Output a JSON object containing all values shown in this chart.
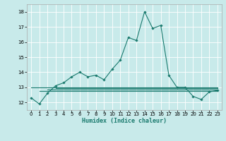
{
  "xlabel": "Humidex (Indice chaleur)",
  "background_color": "#c8eaea",
  "grid_color": "#d0f0f0",
  "line_color": "#1a7a6e",
  "xlim": [
    -0.5,
    23.5
  ],
  "ylim": [
    11.5,
    18.5
  ],
  "yticks": [
    12,
    13,
    14,
    15,
    16,
    17,
    18
  ],
  "xtick_labels": [
    "0",
    "1",
    "2",
    "3",
    "4",
    "5",
    "6",
    "7",
    "8",
    "9",
    "10",
    "11",
    "12",
    "13",
    "14",
    "15",
    "16",
    "17",
    "18",
    "19",
    "20",
    "21",
    "22",
    "23"
  ],
  "main_line": {
    "x": [
      0,
      1,
      2,
      3,
      4,
      5,
      6,
      7,
      8,
      9,
      10,
      11,
      12,
      13,
      14,
      15,
      16,
      17,
      18,
      19,
      20,
      21,
      22,
      23
    ],
    "y": [
      12.3,
      11.9,
      12.6,
      13.1,
      13.3,
      13.7,
      14.0,
      13.7,
      13.8,
      13.5,
      14.2,
      14.8,
      16.3,
      16.1,
      18.0,
      16.9,
      17.1,
      13.8,
      13.0,
      13.0,
      12.4,
      12.2,
      12.7,
      12.8
    ]
  },
  "flat_lines": [
    {
      "x": [
        0,
        23
      ],
      "y": [
        13.0,
        13.0
      ]
    },
    {
      "x": [
        1,
        23
      ],
      "y": [
        12.75,
        12.75
      ]
    },
    {
      "x": [
        2,
        23
      ],
      "y": [
        12.85,
        12.85
      ]
    },
    {
      "x": [
        3,
        23
      ],
      "y": [
        12.93,
        12.93
      ]
    }
  ],
  "tick_fontsize": 5,
  "xlabel_fontsize": 6,
  "marker_size": 1.8,
  "line_width": 0.8
}
